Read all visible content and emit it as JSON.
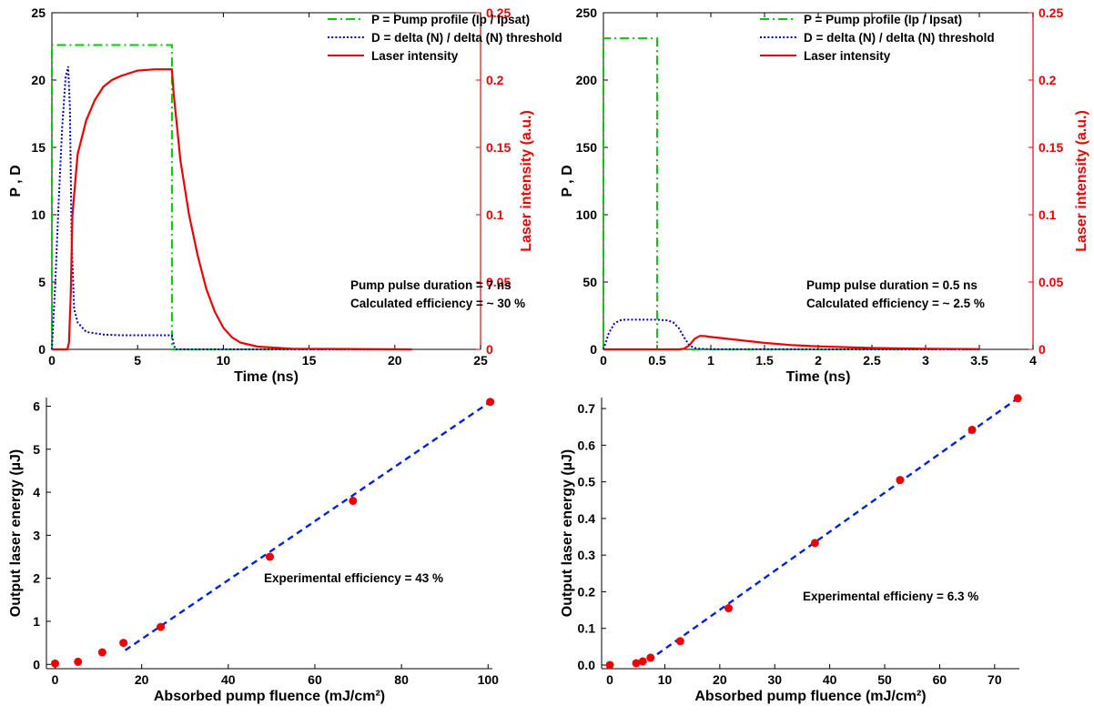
{
  "figure": {
    "colors": {
      "pump": "#00cc00",
      "delta": "#0000cc",
      "laser": "#ee0000",
      "fit": "#0022dd",
      "points": "#ee0000",
      "right_axis": "#ee0000"
    }
  },
  "chart_data": [
    {
      "type": "line",
      "xlabel": "Time (ns)",
      "ylabel": "P ,  D",
      "y2label": "Laser intensity (a.u.)",
      "xlim": [
        0,
        25
      ],
      "ylim": [
        0,
        25
      ],
      "y2lim": [
        0,
        0.25
      ],
      "xticks": [
        "0",
        "5",
        "10",
        "15",
        "20",
        "25"
      ],
      "yticks": [
        "0",
        "5",
        "10",
        "15",
        "20",
        "25"
      ],
      "y2ticks": [
        "0",
        "0.05",
        "0.1",
        "0.15",
        "0.2",
        "0.25"
      ],
      "legend": [
        "P = Pump profile (Ip / Ipsat)",
        "D = delta (N) / delta (N) threshold",
        "Laser intensity"
      ],
      "legend_position": "top-right",
      "annotations": [
        "Pump pulse duration = 7 ns",
        "Calculated efficiency = ~ 30 %"
      ],
      "series": [
        {
          "name": "P = Pump profile (Ip / Ipsat)",
          "axis": "left",
          "style": "dashdot",
          "x": [
            0,
            0,
            7,
            7,
            21
          ],
          "y": [
            0,
            22.6,
            22.6,
            0,
            0
          ]
        },
        {
          "name": "D = delta (N) / delta (N) threshold",
          "axis": "left",
          "style": "dotted",
          "x": [
            0,
            0.2,
            0.4,
            0.6,
            0.8,
            0.95,
            1.05,
            1.15,
            1.3,
            1.5,
            2,
            3,
            4,
            5,
            6,
            7,
            7.1,
            7.2,
            21
          ],
          "y": [
            0,
            5,
            11,
            16.5,
            20.2,
            21,
            18,
            8,
            3,
            2,
            1.3,
            1.1,
            1.05,
            1.05,
            1.05,
            1.05,
            0.4,
            0,
            0
          ]
        },
        {
          "name": "Laser intensity",
          "axis": "right",
          "style": "solid",
          "x": [
            0,
            0.9,
            1.0,
            1.1,
            1.2,
            1.5,
            2,
            2.5,
            3,
            3.5,
            4,
            5,
            6,
            7,
            7.1,
            7.5,
            8,
            8.5,
            9,
            9.5,
            10,
            10.5,
            11,
            12,
            14,
            21
          ],
          "y": [
            0,
            0,
            0.005,
            0.04,
            0.1,
            0.145,
            0.17,
            0.185,
            0.195,
            0.2,
            0.203,
            0.207,
            0.208,
            0.208,
            0.19,
            0.14,
            0.1,
            0.07,
            0.045,
            0.028,
            0.016,
            0.009,
            0.005,
            0.002,
            0.0005,
            0
          ]
        }
      ]
    },
    {
      "type": "line",
      "xlabel": "Time (ns)",
      "ylabel": "P ,  D",
      "y2label": "Laser intensity (a.u.)",
      "xlim": [
        0,
        4
      ],
      "ylim": [
        0,
        250
      ],
      "y2lim": [
        0,
        0.25
      ],
      "xticks": [
        "0",
        "0.5",
        "1",
        "1.5",
        "2",
        "2.5",
        "3",
        "3.5",
        "4"
      ],
      "yticks": [
        "0",
        "50",
        "100",
        "150",
        "200",
        "250"
      ],
      "y2ticks": [
        "0",
        "0.05",
        "0.1",
        "0.15",
        "0.2",
        "0.25"
      ],
      "legend": [
        "P = Pump profile (Ip / Ipsat)",
        "D = delta (N) / delta (N) threshold",
        "Laser intensity"
      ],
      "legend_position": "top-right",
      "annotations": [
        "Pump pulse duration = 0.5 ns",
        "Calculated efficiency = ~ 2.5 %"
      ],
      "series": [
        {
          "name": "P = Pump profile (Ip / Ipsat)",
          "axis": "left",
          "style": "dashdot",
          "x": [
            0,
            0,
            0.5,
            0.5,
            3.5
          ],
          "y": [
            0,
            231,
            231,
            0,
            0
          ]
        },
        {
          "name": "D = delta (N) / delta (N) threshold",
          "axis": "left",
          "style": "dotted",
          "x": [
            0,
            0.05,
            0.1,
            0.15,
            0.2,
            0.3,
            0.4,
            0.5,
            0.6,
            0.65,
            0.7,
            0.75,
            0.8,
            0.85,
            0.9,
            1.0,
            3.5
          ],
          "y": [
            0,
            12,
            19,
            21.5,
            22,
            22,
            22,
            22,
            21.5,
            20,
            16,
            9,
            3,
            1,
            0.4,
            0.1,
            0
          ]
        },
        {
          "name": "Laser intensity",
          "axis": "right",
          "style": "solid",
          "x": [
            0,
            0.7,
            0.75,
            0.8,
            0.85,
            0.9,
            0.95,
            1.0,
            1.25,
            1.5,
            1.75,
            2.0,
            2.5,
            3.0,
            3.5
          ],
          "y": [
            0,
            0,
            0.0005,
            0.003,
            0.008,
            0.01,
            0.0098,
            0.0092,
            0.007,
            0.0048,
            0.0032,
            0.0022,
            0.001,
            0.0005,
            0.0002
          ]
        }
      ]
    },
    {
      "type": "scatter",
      "xlabel": "Absorbed pump fluence (mJ/cm²)",
      "ylabel": "Output laser energy (µJ)",
      "xlim": [
        -2,
        101
      ],
      "ylim": [
        -0.1,
        6.2
      ],
      "xticks": [
        "0",
        "20",
        "40",
        "60",
        "80",
        "100"
      ],
      "yticks": [
        "0",
        "1",
        "2",
        "3",
        "4",
        "5",
        "6"
      ],
      "annotations": [
        "Experimental efficiency = 43 %"
      ],
      "points": {
        "x": [
          0,
          5.3,
          10.9,
          15.8,
          24.4,
          49.6,
          68.8,
          100.5
        ],
        "y": [
          0.02,
          0.06,
          0.28,
          0.5,
          0.87,
          2.5,
          3.8,
          6.1
        ]
      },
      "fit": {
        "x": [
          16.2,
          100.5
        ],
        "y": [
          0.33,
          6.1
        ]
      }
    },
    {
      "type": "scatter",
      "xlabel": "Absorbed pump fluence (mJ/cm²)",
      "ylabel": "Output laser energy (µJ)",
      "xlim": [
        -1.5,
        74.5
      ],
      "ylim": [
        -0.01,
        0.73
      ],
      "xticks": [
        "0",
        "10",
        "20",
        "30",
        "40",
        "50",
        "60",
        "70"
      ],
      "yticks": [
        "0.0",
        "0.1",
        "0.2",
        "0.3",
        "0.4",
        "0.5",
        "0.6",
        "0.7"
      ],
      "annotations": [
        "Experimental efficieny = 6.3 %"
      ],
      "points": {
        "x": [
          0,
          4.8,
          6.0,
          7.4,
          12.8,
          21.6,
          37.3,
          52.8,
          65.9,
          74.2
        ],
        "y": [
          0.0,
          0.005,
          0.01,
          0.02,
          0.065,
          0.155,
          0.333,
          0.505,
          0.642,
          0.728
        ]
      },
      "fit": {
        "x": [
          7.0,
          74.2
        ],
        "y": [
          0.012,
          0.728
        ]
      }
    }
  ]
}
